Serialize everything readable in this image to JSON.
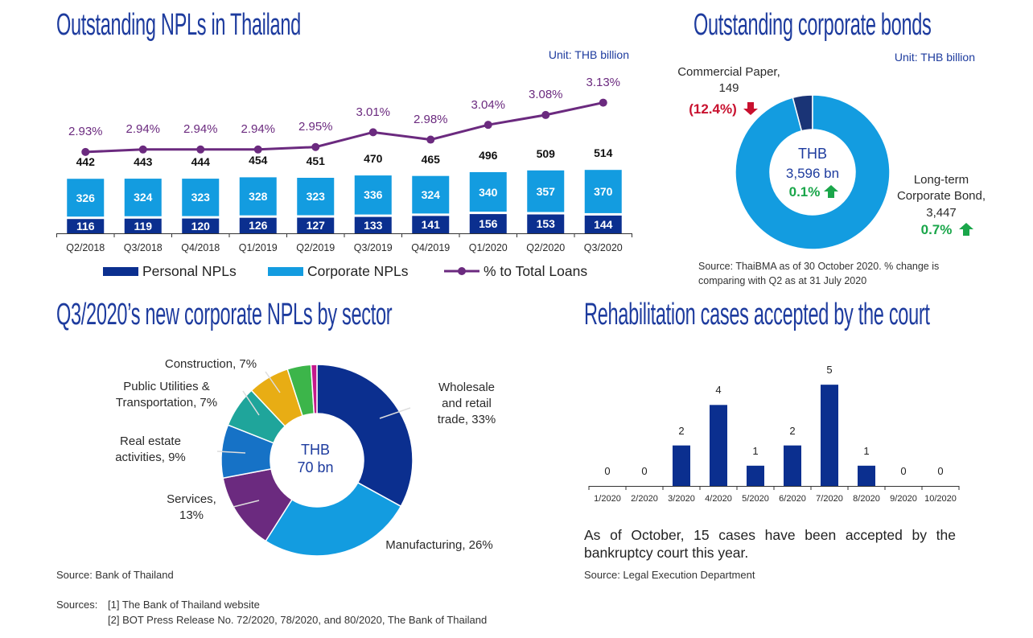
{
  "chart_data": [
    {
      "type": "bar",
      "title": "Outstanding NPLs in Thailand",
      "unit": "Unit: THB billion",
      "categories": [
        "Q2/2018",
        "Q3/2018",
        "Q4/2018",
        "Q1/2019",
        "Q2/2019",
        "Q3/2019",
        "Q4/2019",
        "Q1/2020",
        "Q2/2020",
        "Q3/2020"
      ],
      "stacked": true,
      "series": [
        {
          "name": "Personal NPLs",
          "color": "#0b2f8f",
          "values": [
            116,
            119,
            120,
            126,
            127,
            133,
            141,
            156,
            153,
            144
          ]
        },
        {
          "name": "Corporate NPLs",
          "color": "#139ce0",
          "values": [
            326,
            324,
            323,
            328,
            323,
            336,
            324,
            340,
            357,
            370
          ]
        },
        {
          "name": "% to Total Loans",
          "color": "#6b2a7f",
          "type": "line",
          "axis": "y2",
          "values": [
            2.93,
            2.94,
            2.94,
            2.94,
            2.95,
            3.01,
            2.98,
            3.04,
            3.08,
            3.13
          ],
          "value_labels": [
            "2.93%",
            "2.94%",
            "2.94%",
            "2.94%",
            "2.95%",
            "3.01%",
            "2.98%",
            "3.04%",
            "3.08%",
            "3.13%"
          ]
        }
      ],
      "totals": [
        442,
        443,
        444,
        454,
        451,
        470,
        465,
        496,
        509,
        514
      ],
      "ylim": [
        0,
        600
      ],
      "y2lim": [
        2.6,
        3.22
      ],
      "legend": "bottom"
    },
    {
      "type": "pie",
      "donut": true,
      "title": "Outstanding corporate bonds",
      "unit": "Unit: THB billion",
      "categories": [
        "Commercial Paper,",
        "Long-term Corporate Bond,"
      ],
      "values": [
        149,
        3447
      ],
      "value_labels": [
        "149",
        "3,447"
      ],
      "colors": [
        "#1a3476",
        "#139ce0"
      ],
      "changes": [
        -12.4,
        0.7
      ],
      "change_labels": [
        "(12.4%)",
        "0.7%"
      ],
      "center_label": "THB",
      "total": 3596,
      "total_label": "3,596 bn",
      "total_change": 0.1,
      "total_change_label": "0.1%",
      "up_color": "#1aa64a",
      "down_color": "#c8102e",
      "source": "Source: ThaiBMA as of 30 October 2020. % change is comparing with Q2 as at 31 July 2020"
    },
    {
      "type": "pie",
      "donut": true,
      "title": "Q3/2020’s new corporate NPLs by sector",
      "values": [
        33,
        26,
        13,
        9,
        7,
        7,
        4,
        1
      ],
      "value_labels": [
        "Wholesale and retail trade, 33%",
        "Manufacturing, 26%",
        "Services, 13%",
        "Real estate activities, 9%",
        "Public Utilities & Transportation, 7%",
        "Construction, 7%",
        null,
        null
      ],
      "colors": [
        "#0b2f8f",
        "#139ce0",
        "#6b2a7f",
        "#1672c6",
        "#1fa59b",
        "#e8ad14",
        "#3cb54a",
        "#c4198c"
      ],
      "center_label": "THB",
      "total": 70,
      "total_label": "70 bn",
      "source": "Source: Bank of Thailand"
    },
    {
      "type": "bar",
      "title": "Rehabilitation cases accepted by the court",
      "categories": [
        "1/2020",
        "2/2020",
        "3/2020",
        "4/2020",
        "5/2020",
        "6/2020",
        "7/2020",
        "8/2020",
        "9/2020",
        "10/2020"
      ],
      "values": [
        0,
        0,
        2,
        4,
        1,
        2,
        5,
        1,
        0,
        0
      ],
      "color": "#0b2f8f",
      "ylim": [
        0,
        6
      ],
      "note": "As of October, 15 cases have been accepted by the bankruptcy court this year.",
      "source": "Source: Legal Execution Department"
    }
  ],
  "footer": {
    "label": "Sources:",
    "items": [
      "[1] The Bank of Thailand website",
      "[2] BOT Press Release No. 72/2020, 78/2020, and 80/2020, The Bank of Thailand"
    ]
  }
}
